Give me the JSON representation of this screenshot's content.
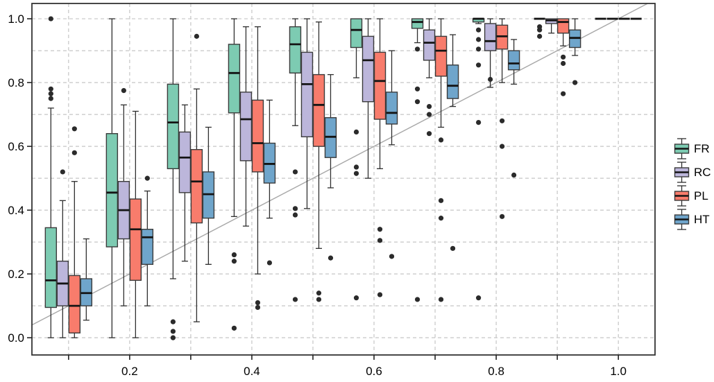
{
  "chart_data": {
    "type": "grouped-boxplot",
    "title": "",
    "xlabel": "",
    "ylabel": "",
    "background": "#ffffff",
    "panel_border_color": "#333333",
    "grid": {
      "on": true,
      "style": "dashed",
      "color": "#c6c6c6",
      "x_values": [
        0.1,
        0.2,
        0.3,
        0.4,
        0.5,
        0.6,
        0.7,
        0.8,
        0.9,
        1.0
      ],
      "y_values": [
        0.0,
        0.1,
        0.2,
        0.3,
        0.4,
        0.5,
        0.6,
        0.7,
        0.8,
        0.9,
        1.0
      ]
    },
    "x_axis": {
      "range": [
        0.04,
        1.06
      ],
      "tick_values": [
        0.1,
        0.2,
        0.3,
        0.4,
        0.5,
        0.6,
        0.7,
        0.8,
        0.9,
        1.0
      ],
      "labeled_ticks": [
        {
          "v": 0.2,
          "label": "0.2"
        },
        {
          "v": 0.4,
          "label": "0.4"
        },
        {
          "v": 0.6,
          "label": "0.6"
        },
        {
          "v": 0.8,
          "label": "0.8"
        },
        {
          "v": 1.0,
          "label": "1.0"
        }
      ]
    },
    "y_axis": {
      "range": [
        -0.054,
        1.048
      ],
      "labeled_ticks": [
        {
          "v": 0.0,
          "label": "0.0"
        },
        {
          "v": 0.2,
          "label": "0.2"
        },
        {
          "v": 0.4,
          "label": "0.4"
        },
        {
          "v": 0.6,
          "label": "0.6"
        },
        {
          "v": 0.8,
          "label": "0.8"
        },
        {
          "v": 1.0,
          "label": "1.0"
        }
      ]
    },
    "reference_line": {
      "type": "identity y=x",
      "color": "#a8a8a8"
    },
    "style": {
      "box_edge_color": "#3b3b3b",
      "median_color": "#141414",
      "whisker_color": "#2e2e2e",
      "outlier_color": "#2b2b2b"
    },
    "legend": {
      "position": "right",
      "entries": [
        {
          "label": "FR"
        },
        {
          "label": "RC"
        },
        {
          "label": "PL"
        },
        {
          "label": "HT"
        }
      ]
    },
    "series": [
      {
        "name": "FR",
        "color": "#7dcbb2",
        "boxes": [
          {
            "x": 0.1,
            "whislo": 0.0,
            "q1": 0.095,
            "med": 0.18,
            "q3": 0.345,
            "whishi": 0.72,
            "outliers": [
              0.75,
              0.765,
              0.78,
              1.0
            ]
          },
          {
            "x": 0.2,
            "whislo": 0.0,
            "q1": 0.285,
            "med": 0.455,
            "q3": 0.64,
            "whishi": 1.0,
            "outliers": []
          },
          {
            "x": 0.3,
            "whislo": 0.185,
            "q1": 0.53,
            "med": 0.675,
            "q3": 0.795,
            "whishi": 1.0,
            "outliers": [
              0.05,
              0.02,
              0.0
            ]
          },
          {
            "x": 0.4,
            "whislo": 0.38,
            "q1": 0.705,
            "med": 0.83,
            "q3": 0.92,
            "whishi": 1.0,
            "outliers": [
              0.26,
              0.24,
              0.03
            ]
          },
          {
            "x": 0.5,
            "whislo": 0.665,
            "q1": 0.83,
            "med": 0.92,
            "q3": 0.975,
            "whishi": 1.0,
            "outliers": [
              0.52,
              0.405,
              0.385,
              0.12
            ]
          },
          {
            "x": 0.6,
            "whislo": 0.815,
            "q1": 0.91,
            "med": 0.965,
            "q3": 1.0,
            "whishi": 1.0,
            "outliers": [
              0.645,
              0.535,
              0.515,
              0.125
            ]
          },
          {
            "x": 0.7,
            "whislo": 0.925,
            "q1": 0.97,
            "med": 0.99,
            "q3": 1.0,
            "whishi": 1.0,
            "outliers": [
              0.905,
              0.78,
              0.74,
              0.12
            ]
          },
          {
            "x": 0.8,
            "whislo": 0.985,
            "q1": 0.99,
            "med": 1.0,
            "q3": 1.0,
            "whishi": 1.0,
            "outliers": [
              0.965,
              0.935,
              0.905,
              0.855,
              0.675,
              0.125
            ]
          },
          {
            "x": 0.9,
            "whislo": 1.0,
            "q1": 1.0,
            "med": 1.0,
            "q3": 1.0,
            "whishi": 1.0,
            "outliers": [
              0.975,
              0.965,
              0.945
            ]
          },
          {
            "x": 1.0,
            "whislo": 1.0,
            "q1": 1.0,
            "med": 1.0,
            "q3": 1.0,
            "whishi": 1.0,
            "outliers": []
          }
        ]
      },
      {
        "name": "RC",
        "color": "#bcb6db",
        "boxes": [
          {
            "x": 0.1,
            "whislo": 0.0,
            "q1": 0.1,
            "med": 0.17,
            "q3": 0.24,
            "whishi": 0.43,
            "outliers": [
              0.52
            ]
          },
          {
            "x": 0.2,
            "whislo": 0.1,
            "q1": 0.31,
            "med": 0.4,
            "q3": 0.49,
            "whishi": 0.73,
            "outliers": [
              0.775
            ]
          },
          {
            "x": 0.3,
            "whislo": 0.24,
            "q1": 0.455,
            "med": 0.565,
            "q3": 0.645,
            "whishi": 0.73,
            "outliers": []
          },
          {
            "x": 0.4,
            "whislo": 0.35,
            "q1": 0.555,
            "med": 0.685,
            "q3": 0.77,
            "whishi": 0.975,
            "outliers": []
          },
          {
            "x": 0.5,
            "whislo": 0.405,
            "q1": 0.63,
            "med": 0.795,
            "q3": 0.895,
            "whishi": 1.0,
            "outliers": []
          },
          {
            "x": 0.6,
            "whislo": 0.5,
            "q1": 0.74,
            "med": 0.87,
            "q3": 0.945,
            "whishi": 1.0,
            "outliers": []
          },
          {
            "x": 0.7,
            "whislo": 0.815,
            "q1": 0.87,
            "med": 0.925,
            "q3": 0.965,
            "whishi": 1.0,
            "outliers": [
              0.725,
              0.7,
              0.64
            ]
          },
          {
            "x": 0.8,
            "whislo": 0.785,
            "q1": 0.9,
            "med": 0.93,
            "q3": 0.985,
            "whishi": 1.0,
            "outliers": [
              0.81
            ]
          },
          {
            "x": 0.9,
            "whislo": 0.955,
            "q1": 0.985,
            "med": 0.995,
            "q3": 1.0,
            "whishi": 1.0,
            "outliers": []
          },
          {
            "x": 1.0,
            "whislo": 1.0,
            "q1": 1.0,
            "med": 1.0,
            "q3": 1.0,
            "whishi": 1.0,
            "outliers": []
          }
        ]
      },
      {
        "name": "PL",
        "color": "#f87c6c",
        "boxes": [
          {
            "x": 0.1,
            "whislo": 0.0,
            "q1": 0.015,
            "med": 0.1,
            "q3": 0.195,
            "whishi": 0.49,
            "outliers": [
              0.655,
              0.58
            ]
          },
          {
            "x": 0.2,
            "whislo": 0.0,
            "q1": 0.18,
            "med": 0.34,
            "q3": 0.435,
            "whishi": 0.71,
            "outliers": []
          },
          {
            "x": 0.3,
            "whislo": 0.05,
            "q1": 0.36,
            "med": 0.49,
            "q3": 0.59,
            "whishi": 0.78,
            "outliers": [
              0.945
            ]
          },
          {
            "x": 0.4,
            "whislo": 0.2,
            "q1": 0.52,
            "med": 0.61,
            "q3": 0.745,
            "whishi": 0.975,
            "outliers": [
              0.11,
              0.095
            ]
          },
          {
            "x": 0.5,
            "whislo": 0.28,
            "q1": 0.6,
            "med": 0.73,
            "q3": 0.825,
            "whishi": 0.99,
            "outliers": [
              0.14,
              0.12
            ]
          },
          {
            "x": 0.6,
            "whislo": 0.53,
            "q1": 0.685,
            "med": 0.805,
            "q3": 0.895,
            "whishi": 1.0,
            "outliers": [
              0.34,
              0.305,
              0.135
            ]
          },
          {
            "x": 0.7,
            "whislo": 0.66,
            "q1": 0.82,
            "med": 0.9,
            "q3": 0.945,
            "whishi": 1.0,
            "outliers": [
              0.62,
              0.43,
              0.375,
              0.12
            ]
          },
          {
            "x": 0.8,
            "whislo": 0.8,
            "q1": 0.905,
            "med": 0.945,
            "q3": 0.98,
            "whishi": 1.0,
            "outliers": [
              0.68,
              0.6,
              0.38
            ]
          },
          {
            "x": 0.9,
            "whislo": 0.915,
            "q1": 0.955,
            "med": 0.99,
            "q3": 1.0,
            "whishi": 1.0,
            "outliers": [
              0.88,
              0.86,
              0.765
            ]
          },
          {
            "x": 1.0,
            "whislo": 1.0,
            "q1": 1.0,
            "med": 1.0,
            "q3": 1.0,
            "whishi": 1.0,
            "outliers": []
          }
        ]
      },
      {
        "name": "HT",
        "color": "#6fa5cb",
        "boxes": [
          {
            "x": 0.1,
            "whislo": 0.055,
            "q1": 0.1,
            "med": 0.14,
            "q3": 0.185,
            "whishi": 0.31,
            "outliers": []
          },
          {
            "x": 0.2,
            "whislo": 0.1,
            "q1": 0.23,
            "med": 0.315,
            "q3": 0.34,
            "whishi": 0.46,
            "outliers": [
              0.5
            ]
          },
          {
            "x": 0.3,
            "whislo": 0.23,
            "q1": 0.375,
            "med": 0.45,
            "q3": 0.52,
            "whishi": 0.66,
            "outliers": []
          },
          {
            "x": 0.4,
            "whislo": 0.375,
            "q1": 0.485,
            "med": 0.545,
            "q3": 0.61,
            "whishi": 0.745,
            "outliers": [
              0.235
            ]
          },
          {
            "x": 0.5,
            "whislo": 0.47,
            "q1": 0.565,
            "med": 0.63,
            "q3": 0.69,
            "whishi": 0.825,
            "outliers": [
              0.25
            ]
          },
          {
            "x": 0.6,
            "whislo": 0.605,
            "q1": 0.67,
            "med": 0.705,
            "q3": 0.77,
            "whishi": 0.9,
            "outliers": [
              0.255
            ]
          },
          {
            "x": 0.7,
            "whislo": 0.725,
            "q1": 0.75,
            "med": 0.79,
            "q3": 0.855,
            "whishi": 0.95,
            "outliers": [
              0.28
            ]
          },
          {
            "x": 0.8,
            "whislo": 0.795,
            "q1": 0.84,
            "med": 0.86,
            "q3": 0.9,
            "whishi": 0.935,
            "outliers": [
              0.51
            ]
          },
          {
            "x": 0.9,
            "whislo": 0.885,
            "q1": 0.91,
            "med": 0.94,
            "q3": 0.965,
            "whishi": 1.0,
            "outliers": [
              0.8
            ]
          },
          {
            "x": 1.0,
            "whislo": 1.0,
            "q1": 1.0,
            "med": 1.0,
            "q3": 1.0,
            "whishi": 1.0,
            "outliers": []
          }
        ]
      }
    ]
  }
}
